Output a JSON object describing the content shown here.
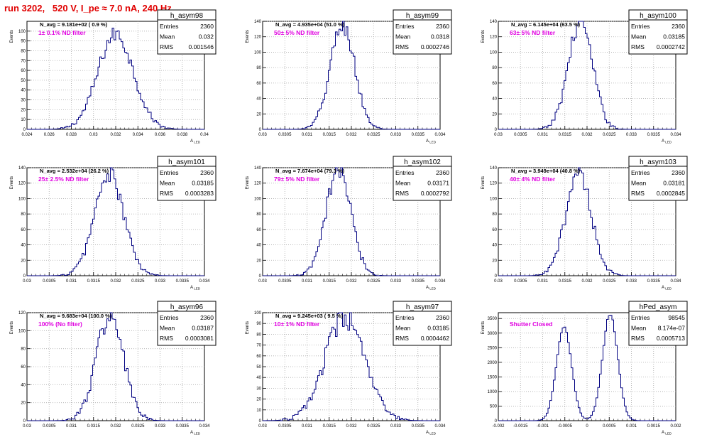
{
  "header": {
    "title": "run 3202,   520 V, I_pe ≈ 7.0 nA, 240 Hz"
  },
  "colors": {
    "title": "#e00000",
    "histogram": "#000080",
    "filter_label": "#e000e0",
    "grid": "#aaaaaa"
  },
  "chart_data": [
    {
      "type": "histogram",
      "name": "h_asym98",
      "navg": "N_avg = 9.181e+02 ( 0.9 %)",
      "filter_label": "1± 0.1% ND filter",
      "stats": {
        "entries": "2360",
        "mean": "0.032",
        "rms": "0.001546"
      },
      "ylabel": "Events",
      "xlabel": "A_{LED}",
      "xlim": [
        0.024,
        0.04
      ],
      "ylim": [
        0,
        110
      ],
      "xticks": [
        "0.024",
        "0.026",
        "0.028",
        "0.03",
        "0.032",
        "0.034",
        "0.036",
        "0.038",
        "0.04"
      ],
      "yticks": [
        0,
        10,
        20,
        30,
        40,
        50,
        60,
        70,
        80,
        90,
        100
      ],
      "grid": true,
      "mean": 0.032,
      "sigma": 0.0016,
      "peak": 97,
      "nbins": 100,
      "noise": 8
    },
    {
      "type": "histogram",
      "name": "h_asym99",
      "navg": "N_avg = 4.935e+04 (51.0 %)",
      "filter_label": "50± 5% ND filter",
      "stats": {
        "entries": "2360",
        "mean": "0.0318",
        "rms": "0.0002746"
      },
      "ylabel": "Events",
      "xlabel": "A_{LED}",
      "xlim": [
        0.03,
        0.034
      ],
      "ylim": [
        0,
        140
      ],
      "xticks": [
        "0.03",
        "0.0305",
        "0.031",
        "0.0315",
        "0.032",
        "0.0325",
        "0.033",
        "0.0335",
        "0.034"
      ],
      "yticks": [
        0,
        20,
        40,
        60,
        80,
        100,
        120,
        140
      ],
      "grid": true,
      "mean": 0.0318,
      "sigma": 0.000275,
      "peak": 135,
      "nbins": 100,
      "noise": 12
    },
    {
      "type": "histogram",
      "name": "h_asym100",
      "navg": "N_avg = 6.145e+04 (63.5 %)",
      "filter_label": "63± 5% ND filter",
      "stats": {
        "entries": "2360",
        "mean": "0.03185",
        "rms": "0.0002742"
      },
      "ylabel": "Events",
      "xlabel": "A_{LED}",
      "xlim": [
        0.03,
        0.034
      ],
      "ylim": [
        0,
        140
      ],
      "xticks": [
        "0.03",
        "0.0305",
        "0.031",
        "0.0315",
        "0.032",
        "0.0325",
        "0.033",
        "0.0335",
        "0.034"
      ],
      "yticks": [
        0,
        20,
        40,
        60,
        80,
        100,
        120,
        140
      ],
      "grid": true,
      "mean": 0.03185,
      "sigma": 0.000274,
      "peak": 140,
      "nbins": 100,
      "noise": 12
    },
    {
      "type": "histogram",
      "name": "h_asym101",
      "navg": "N_avg = 2.532e+04 (26.2 %)",
      "filter_label": "25± 2.5% ND filter",
      "stats": {
        "entries": "2360",
        "mean": "0.03185",
        "rms": "0.0003283"
      },
      "ylabel": "Events",
      "xlabel": "A_{LED}",
      "xlim": [
        0.03,
        0.034
      ],
      "ylim": [
        0,
        140
      ],
      "xticks": [
        "0.03",
        "0.0305",
        "0.031",
        "0.0315",
        "0.032",
        "0.0325",
        "0.033",
        "0.0335",
        "0.034"
      ],
      "yticks": [
        0,
        20,
        40,
        60,
        80,
        100,
        120,
        140
      ],
      "grid": true,
      "mean": 0.03185,
      "sigma": 0.000328,
      "peak": 132,
      "nbins": 100,
      "noise": 12
    },
    {
      "type": "histogram",
      "name": "h_asym102",
      "navg": "N_avg = 7.674e+04 (79.3 %)",
      "filter_label": "79± 5% ND filter",
      "stats": {
        "entries": "2360",
        "mean": "0.03171",
        "rms": "0.0002792"
      },
      "ylabel": "Events",
      "xlabel": "A_{LED}",
      "xlim": [
        0.03,
        0.034
      ],
      "ylim": [
        0,
        140
      ],
      "xticks": [
        "0.03",
        "0.0305",
        "0.031",
        "0.0315",
        "0.032",
        "0.0325",
        "0.033",
        "0.0335",
        "0.034"
      ],
      "yticks": [
        0,
        20,
        40,
        60,
        80,
        100,
        120,
        140
      ],
      "grid": true,
      "mean": 0.03171,
      "sigma": 0.000279,
      "peak": 138,
      "nbins": 100,
      "noise": 12
    },
    {
      "type": "histogram",
      "name": "h_asym103",
      "navg": "N_avg = 3.949e+04 (40.8 %)",
      "filter_label": "40± 4% ND filter",
      "stats": {
        "entries": "2360",
        "mean": "0.03181",
        "rms": "0.0002845"
      },
      "ylabel": "Events",
      "xlabel": "A_{LED}",
      "xlim": [
        0.03,
        0.034
      ],
      "ylim": [
        0,
        140
      ],
      "xticks": [
        "0.03",
        "0.0305",
        "0.031",
        "0.0315",
        "0.032",
        "0.0325",
        "0.033",
        "0.0335",
        "0.034"
      ],
      "yticks": [
        0,
        20,
        40,
        60,
        80,
        100,
        120,
        140
      ],
      "grid": true,
      "mean": 0.03181,
      "sigma": 0.000284,
      "peak": 136,
      "nbins": 100,
      "noise": 12
    },
    {
      "type": "histogram",
      "name": "h_asym96",
      "navg": "N_avg = 9.683e+04 (100.0 %)",
      "filter_label": "100% (No filter)",
      "stats": {
        "entries": "2360",
        "mean": "0.03187",
        "rms": "0.0003081"
      },
      "ylabel": "Events",
      "xlabel": "A_{LED}",
      "xlim": [
        0.03,
        0.034
      ],
      "ylim": [
        0,
        120
      ],
      "xticks": [
        "0.03",
        "0.0305",
        "0.031",
        "0.0315",
        "0.032",
        "0.0325",
        "0.033",
        "0.0335",
        "0.034"
      ],
      "yticks": [
        0,
        20,
        40,
        60,
        80,
        100,
        120
      ],
      "grid": true,
      "mean": 0.03187,
      "sigma": 0.000308,
      "peak": 116,
      "nbins": 100,
      "noise": 12
    },
    {
      "type": "histogram",
      "name": "h_asym97",
      "navg": "N_avg = 9.245e+03 ( 9.5 %)",
      "filter_label": "10± 1% ND filter",
      "stats": {
        "entries": "2360",
        "mean": "0.03185",
        "rms": "0.0004462"
      },
      "ylabel": "Events",
      "xlabel": "A_{LED}",
      "xlim": [
        0.03,
        0.034
      ],
      "ylim": [
        0,
        100
      ],
      "xticks": [
        "0.03",
        "0.0305",
        "0.031",
        "0.0315",
        "0.032",
        "0.0325",
        "0.033",
        "0.0335",
        "0.034"
      ],
      "yticks": [
        0,
        10,
        20,
        30,
        40,
        50,
        60,
        70,
        80,
        90,
        100
      ],
      "grid": true,
      "mean": 0.03185,
      "sigma": 0.000446,
      "peak": 95,
      "nbins": 100,
      "noise": 10
    },
    {
      "type": "histogram",
      "name": "hPed_asym",
      "navg": "",
      "filter_label": "Shutter Closed",
      "stats": {
        "entries": "98545",
        "mean": "8.174e-07",
        "rms": "0.0005713"
      },
      "ylabel": "Events",
      "xlabel": "A_{LED}",
      "xlim": [
        -0.002,
        0.002
      ],
      "ylim": [
        0,
        3700
      ],
      "xticks": [
        "-0.002",
        "-0.0015",
        "-0.001",
        "-0.0005",
        "0",
        "0.0005",
        "0.001",
        "0.0015",
        "0.002"
      ],
      "yticks": [
        0,
        500,
        1000,
        1500,
        2000,
        2500,
        3000,
        3500
      ],
      "grid": true,
      "bimodal": true,
      "peaks": [
        {
          "mean": -0.00052,
          "sigma": 0.00017,
          "height": 3200
        },
        {
          "mean": 0.00052,
          "sigma": 0.00017,
          "height": 3650
        }
      ],
      "nbins": 100,
      "noise": 40
    }
  ]
}
